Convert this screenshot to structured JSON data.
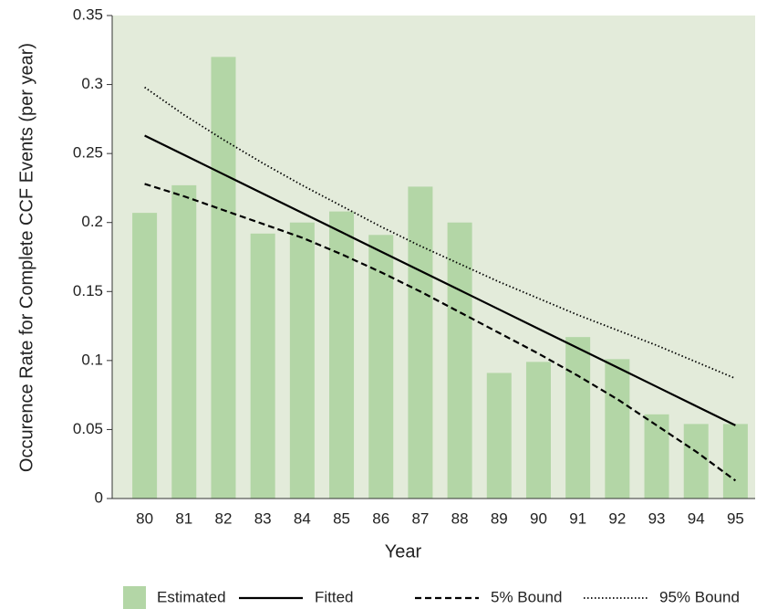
{
  "chart_data": {
    "type": "bar",
    "x_label": "Year",
    "y_label": "Occurence Rate for Complete CCF Events (per year)",
    "categories": [
      "80",
      "81",
      "82",
      "83",
      "84",
      "85",
      "86",
      "87",
      "88",
      "89",
      "90",
      "91",
      "92",
      "93",
      "94",
      "95"
    ],
    "series": [
      {
        "name": "Estimated",
        "type": "bar",
        "color": "#b3d6a6",
        "values": [
          0.207,
          0.227,
          0.32,
          0.192,
          0.2,
          0.208,
          0.191,
          0.226,
          0.2,
          0.091,
          0.099,
          0.117,
          0.101,
          0.061,
          0.054,
          0.054
        ]
      },
      {
        "name": "Fitted",
        "type": "line",
        "color": "#000000",
        "dash": "solid",
        "values": [
          0.263,
          0.249,
          0.235,
          0.221,
          0.207,
          0.193,
          0.179,
          0.165,
          0.151,
          0.137,
          0.123,
          0.109,
          0.095,
          0.081,
          0.067,
          0.053
        ]
      },
      {
        "name": "5% Bound",
        "type": "line",
        "color": "#000000",
        "dash": "dashed",
        "values": [
          0.228,
          0.219,
          0.209,
          0.199,
          0.189,
          0.177,
          0.164,
          0.15,
          0.135,
          0.12,
          0.105,
          0.089,
          0.072,
          0.053,
          0.034,
          0.013
        ]
      },
      {
        "name": "95% Bound",
        "type": "line",
        "color": "#000000",
        "dash": "dotted",
        "values": [
          0.298,
          0.278,
          0.26,
          0.243,
          0.227,
          0.212,
          0.197,
          0.183,
          0.17,
          0.157,
          0.145,
          0.133,
          0.122,
          0.111,
          0.099,
          0.087
        ]
      }
    ],
    "ylim": [
      0,
      0.35
    ],
    "yticks": [
      0,
      0.05,
      0.1,
      0.15,
      0.2,
      0.25,
      0.3,
      0.35
    ],
    "background": "#e3ebda",
    "legend": "bottom"
  }
}
